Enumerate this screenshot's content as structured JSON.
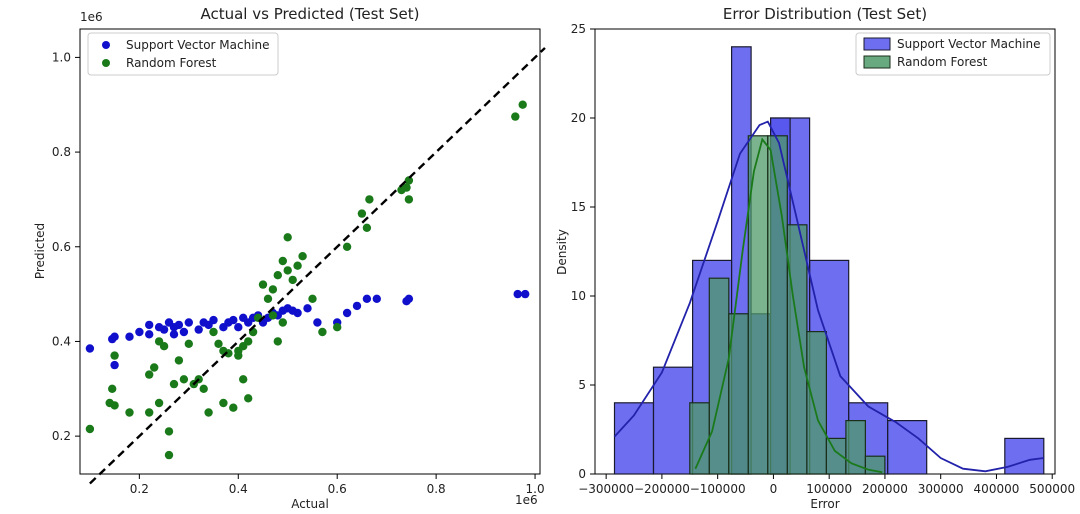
{
  "chart_data": [
    {
      "type": "scatter",
      "title": "Actual vs Predicted (Test Set)",
      "xlabel": "Actual",
      "ylabel": "Predicted",
      "x_offset_text": "1e6",
      "y_offset_text": "1e6",
      "xlim": [
        0.08,
        1.01
      ],
      "ylim": [
        0.12,
        1.06
      ],
      "xticks": [
        0.2,
        0.4,
        0.6,
        0.8,
        1.0
      ],
      "yticks": [
        0.2,
        0.4,
        0.6,
        0.8,
        1.0
      ],
      "legend_position": "top-left",
      "reference_line": {
        "style": "dashed",
        "color": "#000000",
        "from": [
          0.1,
          0.1
        ],
        "to": [
          1.02,
          1.02
        ]
      },
      "series": [
        {
          "name": "Support Vector Machine",
          "color": "#1010cc",
          "points": [
            [
              0.1,
              0.385
            ],
            [
              0.145,
              0.405
            ],
            [
              0.15,
              0.41
            ],
            [
              0.15,
              0.35
            ],
            [
              0.18,
              0.41
            ],
            [
              0.2,
              0.42
            ],
            [
              0.22,
              0.415
            ],
            [
              0.22,
              0.435
            ],
            [
              0.24,
              0.43
            ],
            [
              0.25,
              0.425
            ],
            [
              0.26,
              0.44
            ],
            [
              0.27,
              0.415
            ],
            [
              0.27,
              0.43
            ],
            [
              0.28,
              0.435
            ],
            [
              0.29,
              0.42
            ],
            [
              0.3,
              0.44
            ],
            [
              0.32,
              0.425
            ],
            [
              0.33,
              0.44
            ],
            [
              0.34,
              0.435
            ],
            [
              0.35,
              0.445
            ],
            [
              0.37,
              0.43
            ],
            [
              0.38,
              0.44
            ],
            [
              0.39,
              0.445
            ],
            [
              0.4,
              0.43
            ],
            [
              0.41,
              0.45
            ],
            [
              0.42,
              0.44
            ],
            [
              0.43,
              0.45
            ],
            [
              0.44,
              0.455
            ],
            [
              0.45,
              0.44
            ],
            [
              0.46,
              0.45
            ],
            [
              0.47,
              0.46
            ],
            [
              0.48,
              0.455
            ],
            [
              0.49,
              0.465
            ],
            [
              0.5,
              0.47
            ],
            [
              0.51,
              0.465
            ],
            [
              0.52,
              0.46
            ],
            [
              0.54,
              0.47
            ],
            [
              0.56,
              0.44
            ],
            [
              0.6,
              0.44
            ],
            [
              0.62,
              0.46
            ],
            [
              0.64,
              0.475
            ],
            [
              0.66,
              0.49
            ],
            [
              0.68,
              0.49
            ],
            [
              0.74,
              0.485
            ],
            [
              0.745,
              0.49
            ],
            [
              0.965,
              0.5
            ],
            [
              0.98,
              0.5
            ]
          ]
        },
        {
          "name": "Random Forest",
          "color": "#1a7a1a",
          "points": [
            [
              0.1,
              0.215
            ],
            [
              0.14,
              0.27
            ],
            [
              0.145,
              0.3
            ],
            [
              0.15,
              0.265
            ],
            [
              0.15,
              0.37
            ],
            [
              0.18,
              0.25
            ],
            [
              0.22,
              0.25
            ],
            [
              0.22,
              0.33
            ],
            [
              0.23,
              0.345
            ],
            [
              0.24,
              0.27
            ],
            [
              0.24,
              0.4
            ],
            [
              0.25,
              0.39
            ],
            [
              0.26,
              0.21
            ],
            [
              0.26,
              0.16
            ],
            [
              0.27,
              0.31
            ],
            [
              0.28,
              0.36
            ],
            [
              0.29,
              0.32
            ],
            [
              0.3,
              0.395
            ],
            [
              0.31,
              0.31
            ],
            [
              0.32,
              0.32
            ],
            [
              0.33,
              0.3
            ],
            [
              0.34,
              0.25
            ],
            [
              0.35,
              0.42
            ],
            [
              0.36,
              0.395
            ],
            [
              0.37,
              0.27
            ],
            [
              0.37,
              0.38
            ],
            [
              0.38,
              0.375
            ],
            [
              0.39,
              0.26
            ],
            [
              0.4,
              0.37
            ],
            [
              0.4,
              0.38
            ],
            [
              0.41,
              0.39
            ],
            [
              0.41,
              0.32
            ],
            [
              0.42,
              0.28
            ],
            [
              0.42,
              0.4
            ],
            [
              0.43,
              0.42
            ],
            [
              0.44,
              0.45
            ],
            [
              0.45,
              0.52
            ],
            [
              0.46,
              0.49
            ],
            [
              0.47,
              0.455
            ],
            [
              0.47,
              0.51
            ],
            [
              0.48,
              0.54
            ],
            [
              0.48,
              0.4
            ],
            [
              0.49,
              0.44
            ],
            [
              0.49,
              0.57
            ],
            [
              0.5,
              0.62
            ],
            [
              0.5,
              0.55
            ],
            [
              0.51,
              0.53
            ],
            [
              0.52,
              0.56
            ],
            [
              0.53,
              0.58
            ],
            [
              0.55,
              0.49
            ],
            [
              0.57,
              0.42
            ],
            [
              0.6,
              0.43
            ],
            [
              0.62,
              0.6
            ],
            [
              0.65,
              0.67
            ],
            [
              0.66,
              0.64
            ],
            [
              0.665,
              0.7
            ],
            [
              0.73,
              0.72
            ],
            [
              0.74,
              0.725
            ],
            [
              0.745,
              0.74
            ],
            [
              0.745,
              0.7
            ],
            [
              0.96,
              0.875
            ],
            [
              0.975,
              0.9
            ]
          ]
        }
      ]
    },
    {
      "type": "histogram",
      "title": "Error Distribution (Test Set)",
      "xlabel": "Error",
      "ylabel": "Density",
      "xlim": [
        -320000,
        505000
      ],
      "ylim": [
        0,
        25
      ],
      "xticks": [
        -300000,
        -200000,
        -100000,
        0,
        100000,
        200000,
        300000,
        400000,
        500000
      ],
      "xtick_labels": [
        "−300000",
        "−200000",
        "−100000",
        "0",
        "100000",
        "200000",
        "300000",
        "400000",
        "500000"
      ],
      "yticks": [
        0,
        5,
        10,
        15,
        20,
        25
      ],
      "legend_position": "top-right",
      "series": [
        {
          "name": "Support Vector Machine",
          "color": "#5555ee",
          "edge_color": "#1a1a2e",
          "line_color": "#2222aa",
          "bin_edges": [
            -285000,
            -215000,
            -145000,
            -75000,
            -5000,
            65000,
            135000,
            205000,
            275000,
            345000,
            415000,
            485000
          ],
          "values": [
            4,
            6,
            12,
            9,
            20,
            12,
            4,
            3,
            0,
            0,
            2
          ],
          "extra_bars": [
            {
              "x0": -75000,
              "x1": -40000,
              "value": 24
            },
            {
              "x0": -5000,
              "x1": 30000,
              "value": 20
            }
          ],
          "kde": [
            [
              -285000,
              2.1
            ],
            [
              -250000,
              3.3
            ],
            [
              -200000,
              5.7
            ],
            [
              -150000,
              9.6
            ],
            [
              -100000,
              14.2
            ],
            [
              -60000,
              18.0
            ],
            [
              -25000,
              19.6
            ],
            [
              -10000,
              19.8
            ],
            [
              10000,
              18.6
            ],
            [
              40000,
              14.6
            ],
            [
              80000,
              9.2
            ],
            [
              120000,
              5.5
            ],
            [
              170000,
              3.8
            ],
            [
              220000,
              2.9
            ],
            [
              260000,
              2.0
            ],
            [
              300000,
              0.9
            ],
            [
              340000,
              0.3
            ],
            [
              380000,
              0.15
            ],
            [
              420000,
              0.4
            ],
            [
              460000,
              0.8
            ],
            [
              485000,
              0.9
            ]
          ]
        },
        {
          "name": "Random Forest",
          "color": "#4f9a6a",
          "edge_color": "#1a2e1a",
          "line_color": "#1a7a1a",
          "bin_edges": [
            -185000,
            -150000,
            -115000,
            -80000,
            -45000,
            -10000,
            25000,
            60000,
            95000,
            130000,
            165000,
            200000
          ],
          "values": [
            0,
            4,
            11,
            9,
            19,
            19,
            14,
            8,
            2,
            3,
            1
          ],
          "kde": [
            [
              -140000,
              0.3
            ],
            [
              -110000,
              2.4
            ],
            [
              -80000,
              6.5
            ],
            [
              -55000,
              12.6
            ],
            [
              -35000,
              17.0
            ],
            [
              -20000,
              18.8
            ],
            [
              -5000,
              18.2
            ],
            [
              15000,
              14.5
            ],
            [
              35000,
              10.0
            ],
            [
              55000,
              6.0
            ],
            [
              80000,
              3.0
            ],
            [
              110000,
              1.3
            ],
            [
              140000,
              0.6
            ],
            [
              170000,
              0.25
            ],
            [
              195000,
              0.1
            ]
          ]
        }
      ]
    }
  ]
}
